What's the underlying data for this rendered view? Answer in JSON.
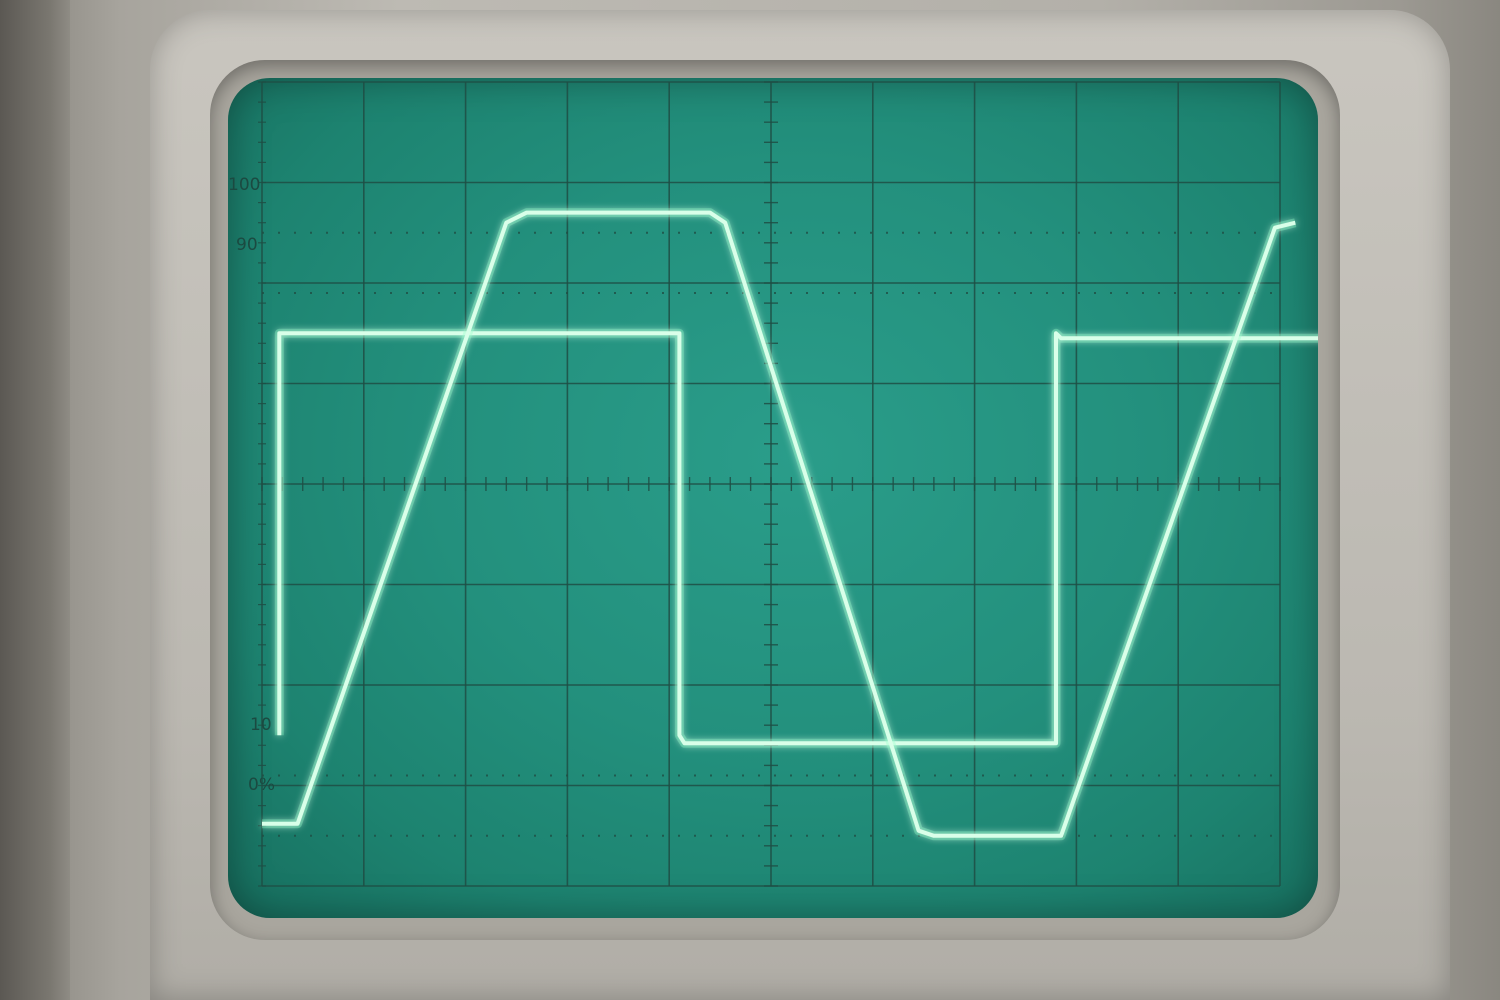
{
  "graticule": {
    "labels": {
      "l100": "100",
      "l90": "90",
      "l10": "10",
      "l0": "0%"
    }
  },
  "colors": {
    "screen": "#23907d",
    "grid": "#1f4d44",
    "trace": "#d9ffe9",
    "trace_glow": "#7dffc0"
  },
  "chart_data": {
    "type": "line",
    "title": "",
    "xlabel": "",
    "ylabel": "",
    "xlim": [
      0,
      10
    ],
    "ylim": [
      0,
      8
    ],
    "y_marker_levels_percent": [
      0,
      10,
      90,
      100
    ],
    "series": [
      {
        "x": [
          0.17,
          0.17,
          0.2,
          4.04,
          4.1,
          4.1,
          4.15,
          7.75,
          7.8,
          7.8,
          7.85,
          10.5
        ],
        "y": [
          1.5,
          5.5,
          5.5,
          5.5,
          5.5,
          1.5,
          1.42,
          1.42,
          1.42,
          5.5,
          5.45,
          5.45
        ]
      },
      {
        "x": [
          0.0,
          0.15,
          0.35,
          2.4,
          2.6,
          4.4,
          4.55,
          6.45,
          6.6,
          7.65,
          7.85,
          9.95,
          10.15
        ],
        "y": [
          0.62,
          0.62,
          0.62,
          6.6,
          6.7,
          6.7,
          6.6,
          0.55,
          0.5,
          0.5,
          0.5,
          6.55,
          6.6
        ]
      }
    ]
  }
}
